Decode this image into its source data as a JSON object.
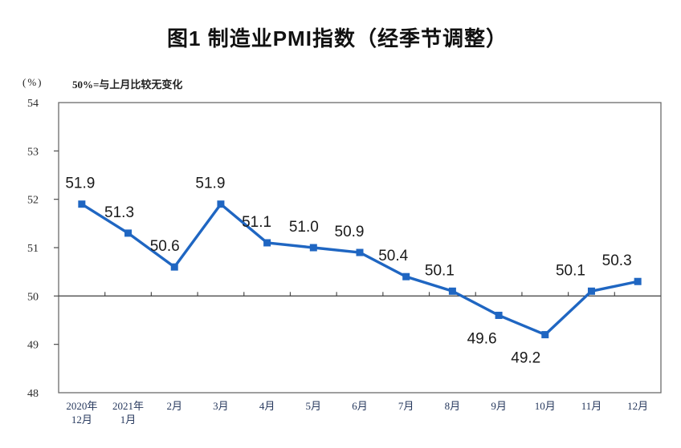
{
  "header": {
    "title": "图1 制造业PMI指数（经季节调整）",
    "unit_label": "(%)",
    "reference_note": "50%=与上月比较无变化"
  },
  "chart_data": {
    "type": "line",
    "title": "图1 制造业PMI指数（经季节调整）",
    "ylabel": "(%)",
    "annotation": "50%=与上月比较无变化",
    "categories": [
      "2020年12月",
      "2021年1月",
      "2月",
      "3月",
      "4月",
      "5月",
      "6月",
      "7月",
      "8月",
      "9月",
      "10月",
      "11月",
      "12月"
    ],
    "category_display_lines": [
      [
        "2020年",
        "12月"
      ],
      [
        "2021年",
        "1月"
      ],
      [
        "2月"
      ],
      [
        "3月"
      ],
      [
        "4月"
      ],
      [
        "5月"
      ],
      [
        "6月"
      ],
      [
        "7月"
      ],
      [
        "8月"
      ],
      [
        "9月"
      ],
      [
        "10月"
      ],
      [
        "11月"
      ],
      [
        "12月"
      ]
    ],
    "series": [
      {
        "name": "制造业PMI指数",
        "values": [
          51.9,
          51.3,
          50.6,
          51.9,
          51.1,
          51.0,
          50.9,
          50.4,
          50.1,
          49.6,
          49.2,
          50.1,
          50.3
        ]
      }
    ],
    "value_decimals": 1,
    "ylim": [
      48,
      54
    ],
    "ytick_step": 1,
    "reference_line_value": 50,
    "grid": false,
    "legend_position": "none",
    "marker_shape": "square",
    "colors": {
      "line": "#1f66c2",
      "marker": "#1f66c2",
      "plot_border": "#6b6b6b",
      "reference_line": "#4d4d4d",
      "tick": "#4d4d4d",
      "data_label": "#1a1a1a",
      "ytick_label": "#2b2b2b",
      "xtick_label": "#27395e"
    }
  }
}
